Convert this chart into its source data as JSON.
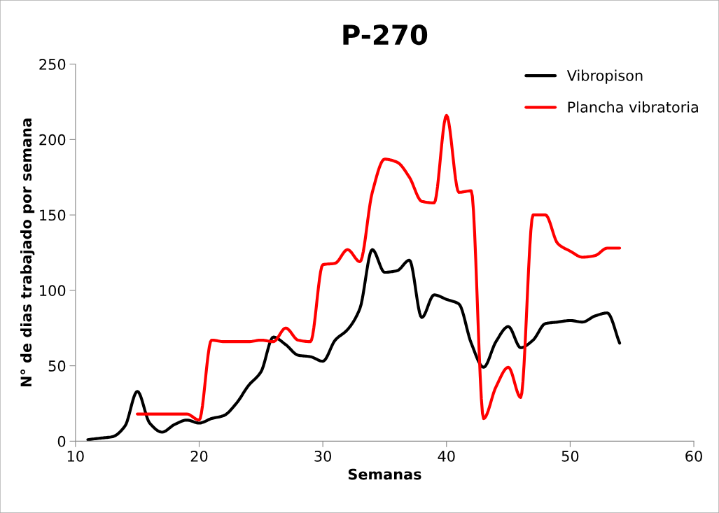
{
  "chart_data": {
    "type": "line",
    "title": "P-270",
    "xlabel": "Semanas",
    "ylabel": "N° de dias trabajado por semana",
    "xlim": [
      10,
      60
    ],
    "xticks": [
      10,
      20,
      30,
      40,
      50,
      60
    ],
    "ylim": [
      0,
      250
    ],
    "yticks": [
      0,
      50,
      100,
      150,
      200,
      250
    ],
    "grid": false,
    "legend": "top right",
    "marker": "none",
    "line_style": "solid",
    "series": [
      {
        "name": "Vibropison",
        "color": "#000000",
        "x": [
          11,
          12,
          13,
          14,
          15,
          16,
          17,
          18,
          19,
          20,
          21,
          22,
          23,
          24,
          25,
          26,
          27,
          28,
          29,
          30,
          31,
          32,
          33,
          34,
          35,
          36,
          37,
          38,
          39,
          40,
          41,
          42,
          43,
          44,
          45,
          46,
          47,
          48,
          49,
          50,
          51,
          52,
          53,
          54
        ],
        "values": [
          1,
          2,
          3,
          10,
          33,
          12,
          6,
          11,
          14,
          12,
          15,
          17,
          25,
          37,
          46,
          69,
          64,
          57,
          56,
          53,
          67,
          74,
          88,
          127,
          112,
          113,
          120,
          82,
          97,
          94,
          91,
          65,
          49,
          66,
          76,
          62,
          67,
          78,
          79,
          80,
          79,
          83,
          85,
          65
        ]
      },
      {
        "name": "Plancha vibratoria",
        "color": "#ff0000",
        "x": [
          15,
          16,
          17,
          18,
          19,
          20,
          21,
          22,
          23,
          24,
          25,
          26,
          27,
          28,
          29,
          30,
          31,
          32,
          33,
          34,
          35,
          36,
          37,
          38,
          39,
          40,
          41,
          42,
          43,
          44,
          45,
          46,
          47,
          48,
          49,
          50,
          51,
          52,
          53,
          54
        ],
        "values": [
          18,
          18,
          18,
          18,
          18,
          14,
          67,
          66,
          66,
          66,
          67,
          66,
          75,
          67,
          66,
          117,
          118,
          127,
          119,
          165,
          187,
          185,
          175,
          159,
          158,
          216,
          165,
          166,
          15,
          36,
          49,
          29,
          150,
          150,
          131,
          126,
          122,
          123,
          128,
          128
        ]
      }
    ]
  }
}
